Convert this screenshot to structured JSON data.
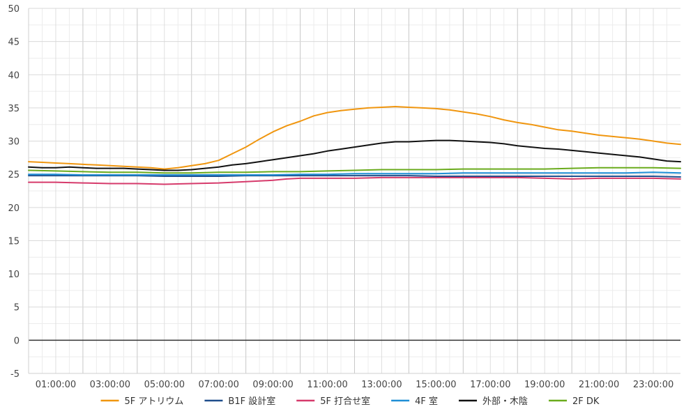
{
  "chart_data": {
    "type": "line",
    "title": "",
    "xlabel": "",
    "ylabel": "",
    "xlim": [
      0,
      24
    ],
    "ylim": [
      -5,
      50
    ],
    "y_ticks": [
      "-5",
      "0",
      "5",
      "10",
      "15",
      "20",
      "25",
      "30",
      "35",
      "40",
      "45",
      "50"
    ],
    "x_ticks": [
      {
        "x": 1,
        "label": "01:00:00"
      },
      {
        "x": 3,
        "label": "03:00:00"
      },
      {
        "x": 5,
        "label": "05:00:00"
      },
      {
        "x": 7,
        "label": "07:00:00"
      },
      {
        "x": 9,
        "label": "09:00:00"
      },
      {
        "x": 11,
        "label": "11:00:00"
      },
      {
        "x": 13,
        "label": "13:00:00"
      },
      {
        "x": 15,
        "label": "15:00:00"
      },
      {
        "x": 17,
        "label": "17:00:00"
      },
      {
        "x": 19,
        "label": "19:00:00"
      },
      {
        "x": 21,
        "label": "21:00:00"
      },
      {
        "x": 23,
        "label": "23:00:00"
      }
    ],
    "grid": true,
    "legend_position": "bottom",
    "series": [
      {
        "name": "5F アトリウム",
        "color": "#f0960f",
        "points": [
          [
            0,
            26.9
          ],
          [
            0.5,
            26.8
          ],
          [
            1,
            26.7
          ],
          [
            1.5,
            26.6
          ],
          [
            2,
            26.5
          ],
          [
            2.5,
            26.4
          ],
          [
            3,
            26.3
          ],
          [
            3.5,
            26.2
          ],
          [
            4,
            26.1
          ],
          [
            4.5,
            26.0
          ],
          [
            5,
            25.8
          ],
          [
            5.5,
            26.0
          ],
          [
            6,
            26.3
          ],
          [
            6.5,
            26.6
          ],
          [
            7,
            27.1
          ],
          [
            7.5,
            28.1
          ],
          [
            8,
            29.1
          ],
          [
            8.5,
            30.3
          ],
          [
            9,
            31.4
          ],
          [
            9.5,
            32.3
          ],
          [
            10,
            33.0
          ],
          [
            10.5,
            33.8
          ],
          [
            11,
            34.3
          ],
          [
            11.5,
            34.6
          ],
          [
            12,
            34.8
          ],
          [
            12.5,
            35.0
          ],
          [
            13,
            35.1
          ],
          [
            13.5,
            35.2
          ],
          [
            14,
            35.1
          ],
          [
            14.5,
            35.0
          ],
          [
            15,
            34.9
          ],
          [
            15.5,
            34.7
          ],
          [
            16,
            34.4
          ],
          [
            16.5,
            34.1
          ],
          [
            17,
            33.7
          ],
          [
            17.5,
            33.2
          ],
          [
            18,
            32.8
          ],
          [
            18.5,
            32.5
          ],
          [
            19,
            32.1
          ],
          [
            19.5,
            31.7
          ],
          [
            20,
            31.5
          ],
          [
            20.5,
            31.2
          ],
          [
            21,
            30.9
          ],
          [
            21.5,
            30.7
          ],
          [
            22,
            30.5
          ],
          [
            22.5,
            30.3
          ],
          [
            23,
            30.0
          ],
          [
            23.5,
            29.7
          ],
          [
            24,
            29.5
          ]
        ]
      },
      {
        "name": "B1F 設計室",
        "color": "#1f4e8c",
        "points": [
          [
            0,
            24.8
          ],
          [
            1,
            24.8
          ],
          [
            2,
            24.8
          ],
          [
            3,
            24.8
          ],
          [
            4,
            24.8
          ],
          [
            5,
            24.7
          ],
          [
            6,
            24.7
          ],
          [
            7,
            24.7
          ],
          [
            8,
            24.8
          ],
          [
            9,
            24.8
          ],
          [
            10,
            24.8
          ],
          [
            11,
            24.8
          ],
          [
            12,
            24.8
          ],
          [
            13,
            24.8
          ],
          [
            14,
            24.8
          ],
          [
            15,
            24.7
          ],
          [
            16,
            24.7
          ],
          [
            17,
            24.7
          ],
          [
            18,
            24.7
          ],
          [
            19,
            24.7
          ],
          [
            20,
            24.7
          ],
          [
            21,
            24.7
          ],
          [
            22,
            24.7
          ],
          [
            23,
            24.7
          ],
          [
            24,
            24.6
          ]
        ]
      },
      {
        "name": "5F 打合せ室",
        "color": "#d63a6b",
        "points": [
          [
            0,
            23.8
          ],
          [
            1,
            23.8
          ],
          [
            2,
            23.7
          ],
          [
            3,
            23.6
          ],
          [
            4,
            23.6
          ],
          [
            5,
            23.5
          ],
          [
            6,
            23.6
          ],
          [
            7,
            23.7
          ],
          [
            8,
            23.9
          ],
          [
            9,
            24.1
          ],
          [
            9.5,
            24.3
          ],
          [
            10,
            24.4
          ],
          [
            10.5,
            24.4
          ],
          [
            11,
            24.4
          ],
          [
            12,
            24.4
          ],
          [
            13,
            24.5
          ],
          [
            14,
            24.5
          ],
          [
            15,
            24.5
          ],
          [
            16,
            24.5
          ],
          [
            17,
            24.5
          ],
          [
            18,
            24.5
          ],
          [
            19,
            24.4
          ],
          [
            20,
            24.3
          ],
          [
            21,
            24.4
          ],
          [
            22,
            24.4
          ],
          [
            23,
            24.4
          ],
          [
            24,
            24.3
          ]
        ]
      },
      {
        "name": "4F 室",
        "color": "#1f8fd6",
        "points": [
          [
            0,
            25.0
          ],
          [
            1,
            25.0
          ],
          [
            2,
            24.9
          ],
          [
            3,
            24.9
          ],
          [
            4,
            24.9
          ],
          [
            5,
            24.9
          ],
          [
            6,
            24.9
          ],
          [
            7,
            24.9
          ],
          [
            8,
            24.9
          ],
          [
            9,
            24.9
          ],
          [
            10,
            25.0
          ],
          [
            11,
            25.0
          ],
          [
            12,
            25.1
          ],
          [
            13,
            25.1
          ],
          [
            14,
            25.1
          ],
          [
            15,
            25.1
          ],
          [
            16,
            25.2
          ],
          [
            17,
            25.2
          ],
          [
            18,
            25.2
          ],
          [
            19,
            25.2
          ],
          [
            20,
            25.2
          ],
          [
            21,
            25.2
          ],
          [
            22,
            25.2
          ],
          [
            23,
            25.3
          ],
          [
            24,
            25.2
          ]
        ]
      },
      {
        "name": "外部・木陰",
        "color": "#111111",
        "points": [
          [
            0,
            26.1
          ],
          [
            0.5,
            26.0
          ],
          [
            1,
            26.0
          ],
          [
            1.5,
            26.1
          ],
          [
            2,
            26.0
          ],
          [
            2.5,
            25.9
          ],
          [
            3,
            25.9
          ],
          [
            3.5,
            25.9
          ],
          [
            4,
            25.8
          ],
          [
            4.5,
            25.7
          ],
          [
            5,
            25.6
          ],
          [
            5.5,
            25.6
          ],
          [
            6,
            25.7
          ],
          [
            6.5,
            25.9
          ],
          [
            7,
            26.1
          ],
          [
            7.5,
            26.4
          ],
          [
            8,
            26.6
          ],
          [
            8.5,
            26.9
          ],
          [
            9,
            27.2
          ],
          [
            9.5,
            27.5
          ],
          [
            10,
            27.8
          ],
          [
            10.5,
            28.1
          ],
          [
            11,
            28.5
          ],
          [
            11.5,
            28.8
          ],
          [
            12,
            29.1
          ],
          [
            12.5,
            29.4
          ],
          [
            13,
            29.7
          ],
          [
            13.5,
            29.9
          ],
          [
            14,
            29.9
          ],
          [
            14.5,
            30.0
          ],
          [
            15,
            30.1
          ],
          [
            15.5,
            30.1
          ],
          [
            16,
            30.0
          ],
          [
            16.5,
            29.9
          ],
          [
            17,
            29.8
          ],
          [
            17.5,
            29.6
          ],
          [
            18,
            29.3
          ],
          [
            18.5,
            29.1
          ],
          [
            19,
            28.9
          ],
          [
            19.5,
            28.8
          ],
          [
            20,
            28.6
          ],
          [
            20.5,
            28.4
          ],
          [
            21,
            28.2
          ],
          [
            21.5,
            28.0
          ],
          [
            22,
            27.8
          ],
          [
            22.5,
            27.6
          ],
          [
            23,
            27.3
          ],
          [
            23.5,
            27.0
          ],
          [
            24,
            26.9
          ]
        ]
      },
      {
        "name": "2F DK",
        "color": "#6aab1c",
        "points": [
          [
            0,
            25.6
          ],
          [
            1,
            25.5
          ],
          [
            2,
            25.4
          ],
          [
            3,
            25.3
          ],
          [
            4,
            25.3
          ],
          [
            5,
            25.2
          ],
          [
            6,
            25.2
          ],
          [
            7,
            25.3
          ],
          [
            8,
            25.3
          ],
          [
            9,
            25.4
          ],
          [
            10,
            25.4
          ],
          [
            11,
            25.5
          ],
          [
            12,
            25.6
          ],
          [
            13,
            25.7
          ],
          [
            14,
            25.7
          ],
          [
            15,
            25.7
          ],
          [
            16,
            25.8
          ],
          [
            17,
            25.8
          ],
          [
            18,
            25.8
          ],
          [
            19,
            25.8
          ],
          [
            20,
            25.9
          ],
          [
            21,
            26.0
          ],
          [
            22,
            26.0
          ],
          [
            23,
            26.0
          ],
          [
            24,
            25.9
          ]
        ]
      }
    ]
  }
}
